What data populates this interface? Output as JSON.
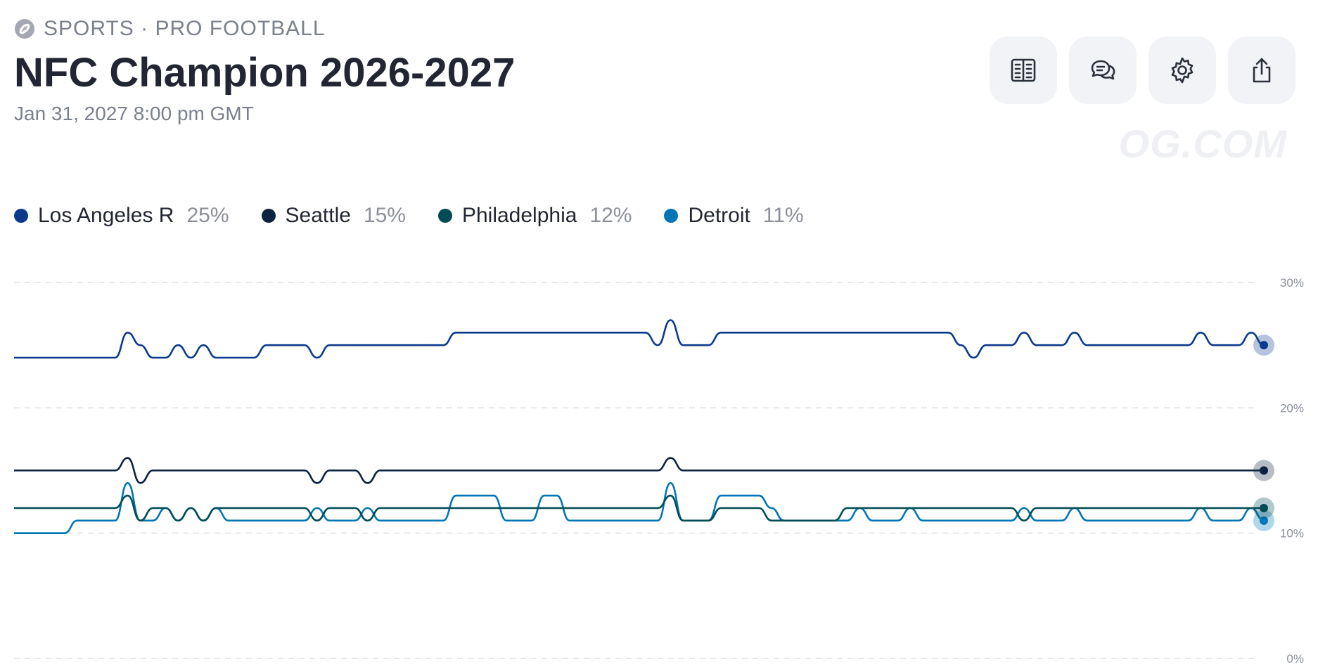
{
  "header": {
    "category": "SPORTS · PRO FOOTBALL",
    "title": "NFC Champion 2026-2027",
    "date": "Jan 31, 2027 8:00 pm GMT",
    "watermark": "OG.COM"
  },
  "toolbar": [
    {
      "name": "rules-button",
      "icon": "document-icon"
    },
    {
      "name": "comments-button",
      "icon": "chat-bubbles-icon"
    },
    {
      "name": "settings-button",
      "icon": "gear-icon"
    },
    {
      "name": "share-button",
      "icon": "share-icon"
    }
  ],
  "chart_data": {
    "type": "line",
    "ylim": [
      0,
      30
    ],
    "yticks": [
      "0%",
      "10%",
      "20%",
      "30%"
    ],
    "ytick_values": [
      0,
      10,
      20,
      30
    ],
    "grid": true,
    "legend_position": "top-left",
    "series": [
      {
        "name": "Los Angeles R",
        "label": "25%",
        "color": "#0b3a8c",
        "values": [
          24,
          24,
          24,
          24,
          24,
          24,
          24,
          24,
          24,
          26,
          25,
          24,
          24,
          25,
          24,
          25,
          24,
          24,
          24,
          24,
          25,
          25,
          25,
          25,
          24,
          25,
          25,
          25,
          25,
          25,
          25,
          25,
          25,
          25,
          25,
          26,
          26,
          26,
          26,
          26,
          26,
          26,
          26,
          26,
          26,
          26,
          26,
          26,
          26,
          26,
          26,
          25,
          27,
          25,
          25,
          25,
          26,
          26,
          26,
          26,
          26,
          26,
          26,
          26,
          26,
          26,
          26,
          26,
          26,
          26,
          26,
          26,
          26,
          26,
          26,
          25,
          24,
          25,
          25,
          25,
          26,
          25,
          25,
          25,
          26,
          25,
          25,
          25,
          25,
          25,
          25,
          25,
          25,
          25,
          26,
          25,
          25,
          25,
          26,
          25
        ]
      },
      {
        "name": "Seattle",
        "label": "15%",
        "color": "#0c2340",
        "values": [
          15,
          15,
          15,
          15,
          15,
          15,
          15,
          15,
          15,
          16,
          14,
          15,
          15,
          15,
          15,
          15,
          15,
          15,
          15,
          15,
          15,
          15,
          15,
          15,
          14,
          15,
          15,
          15,
          14,
          15,
          15,
          15,
          15,
          15,
          15,
          15,
          15,
          15,
          15,
          15,
          15,
          15,
          15,
          15,
          15,
          15,
          15,
          15,
          15,
          15,
          15,
          15,
          16,
          15,
          15,
          15,
          15,
          15,
          15,
          15,
          15,
          15,
          15,
          15,
          15,
          15,
          15,
          15,
          15,
          15,
          15,
          15,
          15,
          15,
          15,
          15,
          15,
          15,
          15,
          15,
          15,
          15,
          15,
          15,
          15,
          15,
          15,
          15,
          15,
          15,
          15,
          15,
          15,
          15,
          15,
          15,
          15,
          15,
          15,
          15
        ]
      },
      {
        "name": "Philadelphia",
        "label": "12%",
        "color": "#004c54",
        "values": [
          12,
          12,
          12,
          12,
          12,
          12,
          12,
          12,
          12,
          13,
          11,
          12,
          12,
          11,
          12,
          11,
          12,
          12,
          12,
          12,
          12,
          12,
          12,
          12,
          11,
          12,
          12,
          12,
          11,
          12,
          12,
          12,
          12,
          12,
          12,
          12,
          12,
          12,
          12,
          12,
          12,
          12,
          12,
          12,
          12,
          12,
          12,
          12,
          12,
          12,
          12,
          12,
          13,
          11,
          11,
          11,
          12,
          12,
          12,
          12,
          11,
          11,
          11,
          11,
          11,
          11,
          12,
          12,
          12,
          12,
          12,
          12,
          12,
          12,
          12,
          12,
          12,
          12,
          12,
          12,
          11,
          12,
          12,
          12,
          12,
          12,
          12,
          12,
          12,
          12,
          12,
          12,
          12,
          12,
          12,
          12,
          12,
          12,
          12,
          12
        ]
      },
      {
        "name": "Detroit",
        "label": "11%",
        "color": "#0076b6",
        "values": [
          10,
          10,
          10,
          10,
          10,
          11,
          11,
          11,
          11,
          14,
          11,
          11,
          12,
          11,
          12,
          11,
          12,
          11,
          11,
          11,
          11,
          11,
          11,
          11,
          12,
          11,
          11,
          11,
          12,
          11,
          11,
          11,
          11,
          11,
          11,
          13,
          13,
          13,
          13,
          11,
          11,
          11,
          13,
          13,
          11,
          11,
          11,
          11,
          11,
          11,
          11,
          11,
          14,
          11,
          11,
          11,
          13,
          13,
          13,
          13,
          12,
          11,
          11,
          11,
          11,
          11,
          11,
          12,
          11,
          11,
          11,
          12,
          11,
          11,
          11,
          11,
          11,
          11,
          11,
          11,
          12,
          11,
          11,
          11,
          12,
          11,
          11,
          11,
          11,
          11,
          11,
          11,
          11,
          11,
          12,
          11,
          11,
          11,
          12,
          11
        ]
      }
    ]
  }
}
